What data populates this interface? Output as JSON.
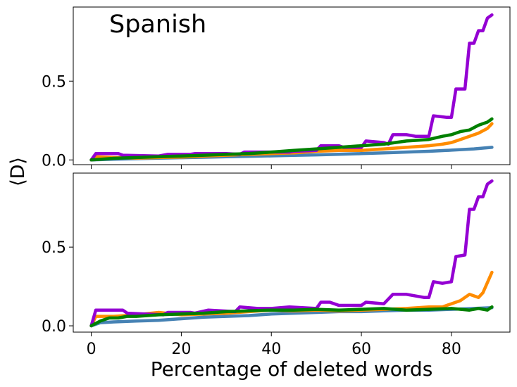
{
  "figure": {
    "ylabel": "⟨D⟩",
    "xlabel": "Percentage of deleted words",
    "panel_label": "Spanish"
  },
  "chart_data": [
    {
      "type": "line",
      "xlim": [
        -4,
        93
      ],
      "ylim": [
        -0.03,
        0.97
      ],
      "x_ticks": [
        0,
        20,
        40,
        60,
        80
      ],
      "x_tick_labels": [
        "0",
        "20",
        "40",
        "60",
        "80"
      ],
      "show_x_tick_labels": false,
      "y_ticks": [
        0.0,
        0.5
      ],
      "y_tick_labels": [
        "0.0",
        "0.5"
      ],
      "grid": false,
      "series": [
        {
          "color": "#4682b4",
          "points": [
            [
              0,
              0.0
            ],
            [
              5,
              0.005
            ],
            [
              10,
              0.008
            ],
            [
              15,
              0.011
            ],
            [
              20,
              0.014
            ],
            [
              25,
              0.017
            ],
            [
              30,
              0.02
            ],
            [
              35,
              0.023
            ],
            [
              40,
              0.026
            ],
            [
              45,
              0.029
            ],
            [
              50,
              0.032
            ],
            [
              55,
              0.036
            ],
            [
              60,
              0.04
            ],
            [
              65,
              0.045
            ],
            [
              70,
              0.05
            ],
            [
              75,
              0.055
            ],
            [
              80,
              0.062
            ],
            [
              85,
              0.07
            ],
            [
              89,
              0.08
            ]
          ]
        },
        {
          "color": "#ff8c00",
          "points": [
            [
              0,
              0.0
            ],
            [
              1,
              0.02
            ],
            [
              5,
              0.015
            ],
            [
              10,
              0.012
            ],
            [
              15,
              0.015
            ],
            [
              20,
              0.018
            ],
            [
              25,
              0.025
            ],
            [
              30,
              0.03
            ],
            [
              35,
              0.035
            ],
            [
              40,
              0.04
            ],
            [
              45,
              0.045
            ],
            [
              50,
              0.055
            ],
            [
              55,
              0.06
            ],
            [
              60,
              0.06
            ],
            [
              65,
              0.07
            ],
            [
              70,
              0.08
            ],
            [
              75,
              0.09
            ],
            [
              78,
              0.1
            ],
            [
              80,
              0.11
            ],
            [
              82,
              0.13
            ],
            [
              84,
              0.15
            ],
            [
              86,
              0.17
            ],
            [
              88,
              0.2
            ],
            [
              89,
              0.23
            ]
          ]
        },
        {
          "color": "#9400d3",
          "points": [
            [
              0,
              0.0
            ],
            [
              1,
              0.04
            ],
            [
              6,
              0.04
            ],
            [
              7,
              0.03
            ],
            [
              15,
              0.025
            ],
            [
              17,
              0.035
            ],
            [
              22,
              0.035
            ],
            [
              23,
              0.04
            ],
            [
              30,
              0.04
            ],
            [
              33,
              0.035
            ],
            [
              34,
              0.05
            ],
            [
              44,
              0.05
            ],
            [
              45,
              0.055
            ],
            [
              50,
              0.06
            ],
            [
              51,
              0.09
            ],
            [
              55,
              0.09
            ],
            [
              56,
              0.08
            ],
            [
              60,
              0.08
            ],
            [
              61,
              0.12
            ],
            [
              65,
              0.11
            ],
            [
              66,
              0.1
            ],
            [
              67,
              0.16
            ],
            [
              70,
              0.16
            ],
            [
              72,
              0.15
            ],
            [
              75,
              0.15
            ],
            [
              76,
              0.28
            ],
            [
              79,
              0.27
            ],
            [
              80,
              0.27
            ],
            [
              81,
              0.45
            ],
            [
              83,
              0.45
            ],
            [
              84,
              0.74
            ],
            [
              85,
              0.74
            ],
            [
              86,
              0.82
            ],
            [
              87,
              0.82
            ],
            [
              88,
              0.9
            ],
            [
              89,
              0.92
            ]
          ]
        },
        {
          "color": "#008000",
          "points": [
            [
              0,
              0.0
            ],
            [
              5,
              0.01
            ],
            [
              10,
              0.015
            ],
            [
              15,
              0.02
            ],
            [
              20,
              0.025
            ],
            [
              25,
              0.03
            ],
            [
              30,
              0.035
            ],
            [
              35,
              0.04
            ],
            [
              40,
              0.05
            ],
            [
              45,
              0.06
            ],
            [
              50,
              0.07
            ],
            [
              55,
              0.08
            ],
            [
              60,
              0.09
            ],
            [
              65,
              0.1
            ],
            [
              70,
              0.12
            ],
            [
              75,
              0.13
            ],
            [
              78,
              0.15
            ],
            [
              80,
              0.16
            ],
            [
              82,
              0.18
            ],
            [
              84,
              0.19
            ],
            [
              86,
              0.22
            ],
            [
              88,
              0.24
            ],
            [
              89,
              0.26
            ]
          ]
        }
      ]
    },
    {
      "type": "line",
      "xlim": [
        -4,
        93
      ],
      "ylim": [
        -0.04,
        0.97
      ],
      "x_ticks": [
        0,
        20,
        40,
        60,
        80
      ],
      "x_tick_labels": [
        "0",
        "20",
        "40",
        "60",
        "80"
      ],
      "show_x_tick_labels": true,
      "y_ticks": [
        0.0,
        0.5
      ],
      "y_tick_labels": [
        "0.0",
        "0.5"
      ],
      "grid": false,
      "series": [
        {
          "color": "#4682b4",
          "points": [
            [
              0,
              0.0
            ],
            [
              2,
              0.02
            ],
            [
              5,
              0.025
            ],
            [
              10,
              0.03
            ],
            [
              15,
              0.035
            ],
            [
              20,
              0.045
            ],
            [
              25,
              0.055
            ],
            [
              30,
              0.06
            ],
            [
              35,
              0.065
            ],
            [
              40,
              0.075
            ],
            [
              45,
              0.08
            ],
            [
              50,
              0.085
            ],
            [
              55,
              0.09
            ],
            [
              60,
              0.09
            ],
            [
              65,
              0.095
            ],
            [
              70,
              0.1
            ],
            [
              75,
              0.1
            ],
            [
              80,
              0.105
            ],
            [
              85,
              0.11
            ],
            [
              89,
              0.115
            ]
          ]
        },
        {
          "color": "#ff8c00",
          "points": [
            [
              0,
              0.0
            ],
            [
              1,
              0.06
            ],
            [
              5,
              0.06
            ],
            [
              10,
              0.07
            ],
            [
              15,
              0.085
            ],
            [
              20,
              0.07
            ],
            [
              25,
              0.075
            ],
            [
              30,
              0.08
            ],
            [
              35,
              0.09
            ],
            [
              40,
              0.1
            ],
            [
              45,
              0.095
            ],
            [
              50,
              0.1
            ],
            [
              55,
              0.095
            ],
            [
              60,
              0.1
            ],
            [
              65,
              0.105
            ],
            [
              70,
              0.11
            ],
            [
              75,
              0.12
            ],
            [
              78,
              0.12
            ],
            [
              80,
              0.14
            ],
            [
              82,
              0.16
            ],
            [
              84,
              0.2
            ],
            [
              86,
              0.18
            ],
            [
              87,
              0.21
            ],
            [
              89,
              0.34
            ]
          ]
        },
        {
          "color": "#9400d3",
          "points": [
            [
              0,
              0.0
            ],
            [
              1,
              0.1
            ],
            [
              7,
              0.1
            ],
            [
              8,
              0.08
            ],
            [
              16,
              0.07
            ],
            [
              17,
              0.085
            ],
            [
              22,
              0.085
            ],
            [
              23,
              0.08
            ],
            [
              26,
              0.1
            ],
            [
              32,
              0.09
            ],
            [
              33,
              0.12
            ],
            [
              37,
              0.11
            ],
            [
              40,
              0.11
            ],
            [
              44,
              0.12
            ],
            [
              50,
              0.11
            ],
            [
              51,
              0.15
            ],
            [
              53,
              0.15
            ],
            [
              55,
              0.13
            ],
            [
              60,
              0.13
            ],
            [
              61,
              0.15
            ],
            [
              65,
              0.14
            ],
            [
              67,
              0.2
            ],
            [
              70,
              0.2
            ],
            [
              74,
              0.18
            ],
            [
              75,
              0.18
            ],
            [
              76,
              0.28
            ],
            [
              78,
              0.27
            ],
            [
              80,
              0.28
            ],
            [
              81,
              0.44
            ],
            [
              83,
              0.45
            ],
            [
              84,
              0.74
            ],
            [
              85,
              0.74
            ],
            [
              86,
              0.82
            ],
            [
              87,
              0.82
            ],
            [
              88,
              0.9
            ],
            [
              89,
              0.92
            ]
          ]
        },
        {
          "color": "#008000",
          "points": [
            [
              0,
              0.0
            ],
            [
              2,
              0.03
            ],
            [
              4,
              0.05
            ],
            [
              6,
              0.05
            ],
            [
              8,
              0.06
            ],
            [
              10,
              0.06
            ],
            [
              15,
              0.07
            ],
            [
              20,
              0.075
            ],
            [
              25,
              0.08
            ],
            [
              30,
              0.09
            ],
            [
              35,
              0.095
            ],
            [
              40,
              0.1
            ],
            [
              45,
              0.1
            ],
            [
              50,
              0.105
            ],
            [
              55,
              0.1
            ],
            [
              60,
              0.105
            ],
            [
              65,
              0.11
            ],
            [
              70,
              0.1
            ],
            [
              75,
              0.105
            ],
            [
              80,
              0.11
            ],
            [
              84,
              0.1
            ],
            [
              86,
              0.11
            ],
            [
              88,
              0.1
            ],
            [
              89,
              0.12
            ]
          ]
        }
      ]
    }
  ]
}
